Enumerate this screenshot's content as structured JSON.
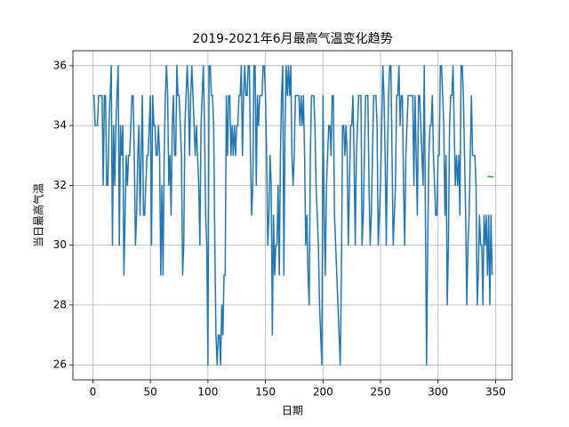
{
  "chart_data": {
    "type": "line",
    "title": "2019-2021年6月最高气温变化趋势",
    "x_label": "日期",
    "y_label": "当日最高气温",
    "xlim": [
      -17.35,
      364.35
    ],
    "ylim": [
      25.5,
      36.5
    ],
    "xticks": [
      0,
      50,
      100,
      150,
      200,
      250,
      300,
      350
    ],
    "yticks": [
      26,
      28,
      30,
      32,
      34,
      36
    ],
    "grid": true,
    "series": [
      {
        "color": "#1f77b4",
        "values": [
          35,
          35,
          34,
          34,
          34,
          35,
          35,
          35,
          35,
          32,
          35,
          35,
          32,
          32,
          34,
          35,
          36,
          30,
          34,
          32,
          34,
          35,
          36,
          30,
          34,
          33,
          34,
          29,
          31,
          33,
          32,
          33,
          33,
          34,
          35,
          35,
          33,
          30,
          31,
          33,
          34,
          31,
          33,
          35,
          31,
          31,
          32,
          33,
          33,
          34,
          35,
          30,
          35,
          34,
          34,
          33,
          33,
          34,
          33,
          29,
          32,
          29,
          33,
          35,
          36,
          35,
          32,
          33,
          31,
          34,
          35,
          33,
          33,
          36,
          35,
          35,
          34,
          33,
          29,
          30,
          34,
          35,
          36,
          35,
          33,
          35,
          36,
          35,
          34,
          33,
          34,
          33,
          32,
          30,
          34,
          35,
          36,
          34,
          31,
          30,
          26,
          36,
          36,
          35,
          35,
          34,
          30,
          27,
          26,
          27,
          27,
          26,
          28,
          27,
          29,
          29,
          35,
          33,
          35,
          35,
          33,
          34,
          33,
          34,
          33,
          34,
          34,
          35,
          35,
          36,
          33,
          35,
          36,
          35,
          35,
          36,
          36,
          33,
          31,
          32,
          36,
          36,
          32,
          35,
          34,
          35,
          35,
          35,
          36,
          36,
          35,
          33,
          30,
          31,
          33,
          32,
          27,
          31,
          29,
          30,
          30,
          32,
          29,
          33,
          35,
          36,
          29,
          34,
          36,
          35,
          36,
          35,
          36,
          33,
          32,
          33,
          35,
          35,
          35,
          35,
          34,
          35,
          34,
          35,
          33,
          30,
          31,
          29,
          28,
          33,
          35,
          35,
          35,
          34,
          32,
          31,
          30,
          28,
          27,
          26,
          35,
          31,
          29,
          32,
          33,
          34,
          34,
          33,
          35,
          35,
          31,
          30,
          29,
          28,
          27,
          26,
          29,
          34,
          34,
          33,
          34,
          33,
          30,
          32,
          34,
          34,
          35,
          33,
          30,
          33,
          34,
          35,
          35,
          35,
          30,
          31,
          33,
          35,
          35,
          35,
          32,
          30,
          31,
          33,
          35,
          35,
          35,
          34,
          30,
          31,
          32,
          34,
          36,
          35,
          33,
          30,
          33,
          35,
          36,
          36,
          33,
          30,
          31,
          32,
          35,
          35,
          36,
          34,
          35,
          35,
          32,
          30,
          33,
          34,
          35,
          35,
          35,
          35,
          35,
          32,
          35,
          33,
          31,
          35,
          35,
          34,
          33,
          32,
          36,
          31,
          26,
          30,
          33,
          34,
          34,
          35,
          33,
          32,
          31,
          31,
          33,
          33,
          36,
          36,
          35,
          34,
          31,
          33,
          28,
          30,
          34,
          35,
          35,
          36,
          34,
          32,
          33,
          32,
          33,
          31,
          36,
          36,
          35,
          33,
          31,
          28,
          30,
          31,
          33,
          35,
          33,
          33,
          33,
          32,
          28,
          29,
          31,
          30,
          30,
          28,
          31,
          30,
          31,
          29,
          31,
          28,
          31,
          29
        ]
      },
      {
        "color": "#2ca02c",
        "x": [
          343,
          348
        ],
        "values": [
          32.3,
          32.28
        ]
      }
    ]
  }
}
